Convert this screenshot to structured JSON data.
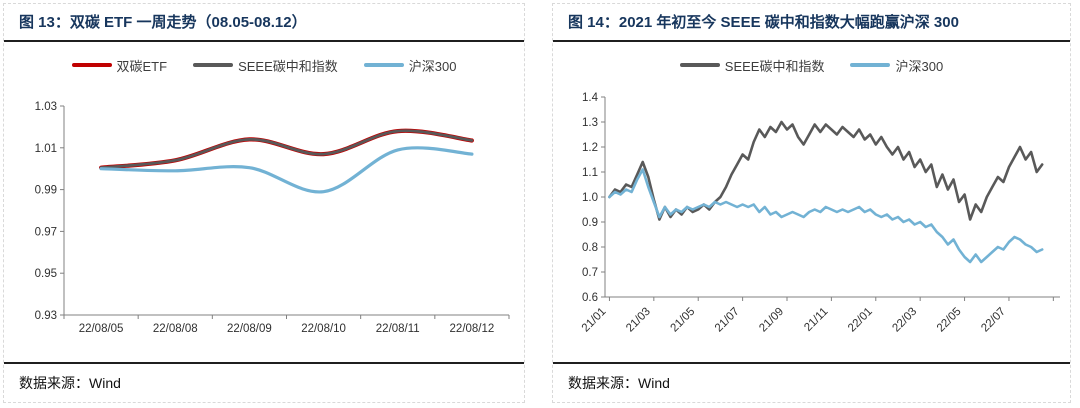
{
  "chart_data": [
    {
      "type": "line",
      "title": "图 13：双碳 ETF 一周走势（08.05-08.12）",
      "source": "数据来源：Wind",
      "legend_position": "top",
      "grid": false,
      "ylim": [
        0.93,
        1.03
      ],
      "y_ticks": [
        "1.03",
        "1.01",
        "0.99",
        "0.97",
        "0.95",
        "0.93"
      ],
      "categories": [
        "22/08/05",
        "22/08/08",
        "22/08/09",
        "22/08/10",
        "22/08/11",
        "22/08/12"
      ],
      "series": [
        {
          "name": "双碳ETF",
          "color": "#c00000",
          "width": 4.2,
          "smooth": true,
          "values": [
            1.0005,
            1.004,
            1.014,
            1.007,
            1.018,
            1.0135
          ]
        },
        {
          "name": "SEEE碳中和指数",
          "color": "#595959",
          "width": 2.8,
          "smooth": true,
          "values": [
            1.0005,
            1.004,
            1.014,
            1.007,
            1.018,
            1.0135
          ]
        },
        {
          "name": "沪深300",
          "color": "#72b2d4",
          "width": 3.2,
          "smooth": true,
          "values": [
            1.0,
            0.999,
            1.0005,
            0.989,
            1.009,
            1.007
          ]
        }
      ]
    },
    {
      "type": "line",
      "title": "图 14：2021 年初至今 SEEE 碳中和指数大幅跑赢沪深 300",
      "source": "数据来源：Wind",
      "legend_position": "top",
      "grid": false,
      "ylim": [
        0.6,
        1.4
      ],
      "y_ticks": [
        "1.4",
        "1.3",
        "1.2",
        "1.1",
        "1.0",
        "0.9",
        "0.8",
        "0.7",
        "0.6"
      ],
      "xlim": [
        -0.2,
        20.3
      ],
      "x_start": 0,
      "x_step": 0.25,
      "x_unit": "months since 2021-01",
      "x_ticks": [
        {
          "pos": 0,
          "label": "21/01"
        },
        {
          "pos": 2,
          "label": "21/03"
        },
        {
          "pos": 4,
          "label": "21/05"
        },
        {
          "pos": 6,
          "label": "21/07"
        },
        {
          "pos": 8,
          "label": "21/09"
        },
        {
          "pos": 10,
          "label": "21/11"
        },
        {
          "pos": 12,
          "label": "22/01"
        },
        {
          "pos": 14,
          "label": "22/03"
        },
        {
          "pos": 16,
          "label": "22/05"
        },
        {
          "pos": 18,
          "label": "22/07"
        },
        {
          "pos": 20,
          "label": ""
        }
      ],
      "series": [
        {
          "name": "SEEE碳中和指数",
          "color": "#595959",
          "width": 2.6,
          "smooth": false,
          "values": [
            1.0,
            1.03,
            1.02,
            1.05,
            1.04,
            1.09,
            1.14,
            1.08,
            0.99,
            0.91,
            0.96,
            0.92,
            0.95,
            0.93,
            0.96,
            0.94,
            0.95,
            0.97,
            0.95,
            0.98,
            1.0,
            1.04,
            1.09,
            1.13,
            1.17,
            1.15,
            1.22,
            1.27,
            1.24,
            1.28,
            1.26,
            1.3,
            1.27,
            1.29,
            1.24,
            1.21,
            1.25,
            1.29,
            1.26,
            1.29,
            1.27,
            1.25,
            1.28,
            1.26,
            1.24,
            1.27,
            1.23,
            1.25,
            1.21,
            1.24,
            1.2,
            1.17,
            1.2,
            1.15,
            1.18,
            1.12,
            1.15,
            1.1,
            1.13,
            1.04,
            1.09,
            1.03,
            1.07,
            0.98,
            1.01,
            0.91,
            0.97,
            0.94,
            1.0,
            1.04,
            1.08,
            1.06,
            1.12,
            1.16,
            1.2,
            1.15,
            1.18,
            1.1,
            1.13
          ]
        },
        {
          "name": "沪深300",
          "color": "#72b2d4",
          "width": 2.6,
          "smooth": false,
          "values": [
            1.0,
            1.02,
            1.01,
            1.03,
            1.02,
            1.07,
            1.11,
            1.04,
            0.98,
            0.92,
            0.96,
            0.93,
            0.95,
            0.94,
            0.96,
            0.95,
            0.96,
            0.97,
            0.96,
            0.98,
            0.97,
            0.98,
            0.97,
            0.96,
            0.97,
            0.96,
            0.97,
            0.94,
            0.96,
            0.93,
            0.94,
            0.92,
            0.93,
            0.94,
            0.93,
            0.92,
            0.94,
            0.95,
            0.94,
            0.96,
            0.95,
            0.94,
            0.95,
            0.94,
            0.95,
            0.96,
            0.94,
            0.95,
            0.93,
            0.92,
            0.93,
            0.91,
            0.92,
            0.9,
            0.91,
            0.89,
            0.9,
            0.88,
            0.89,
            0.86,
            0.84,
            0.81,
            0.83,
            0.79,
            0.76,
            0.74,
            0.77,
            0.74,
            0.76,
            0.78,
            0.8,
            0.79,
            0.82,
            0.84,
            0.83,
            0.81,
            0.8,
            0.78,
            0.79
          ]
        }
      ]
    }
  ]
}
